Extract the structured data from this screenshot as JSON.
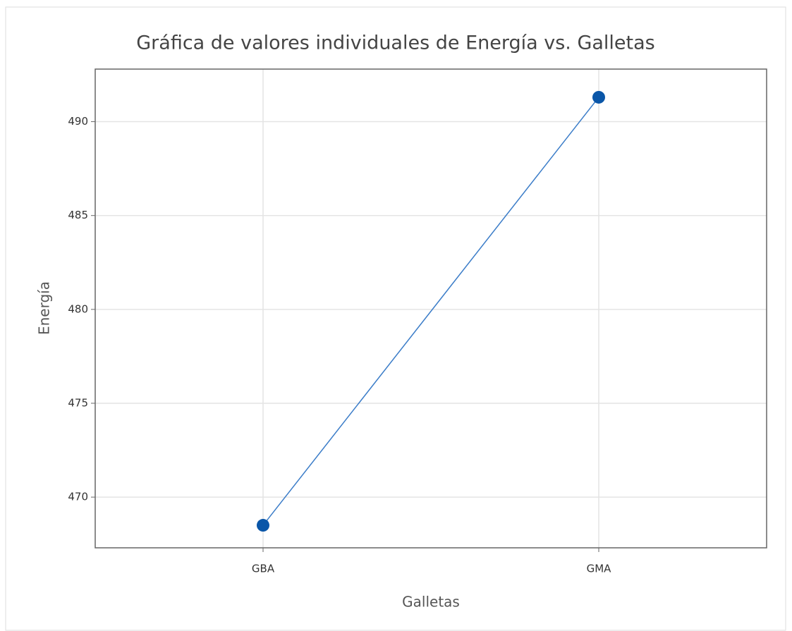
{
  "chart_data": {
    "type": "line",
    "title": "Gráfica de valores individuales de Energía vs. Galletas",
    "x_label": "Galletas",
    "y_label": "Energía",
    "categories": [
      "GBA",
      "GMA"
    ],
    "values": [
      468.5,
      491.3
    ],
    "color": "#0a56a8",
    "markers": true,
    "ylim": [
      467.3,
      492.8
    ],
    "yticks": [
      470,
      475,
      480,
      485,
      490
    ],
    "grid": true
  }
}
